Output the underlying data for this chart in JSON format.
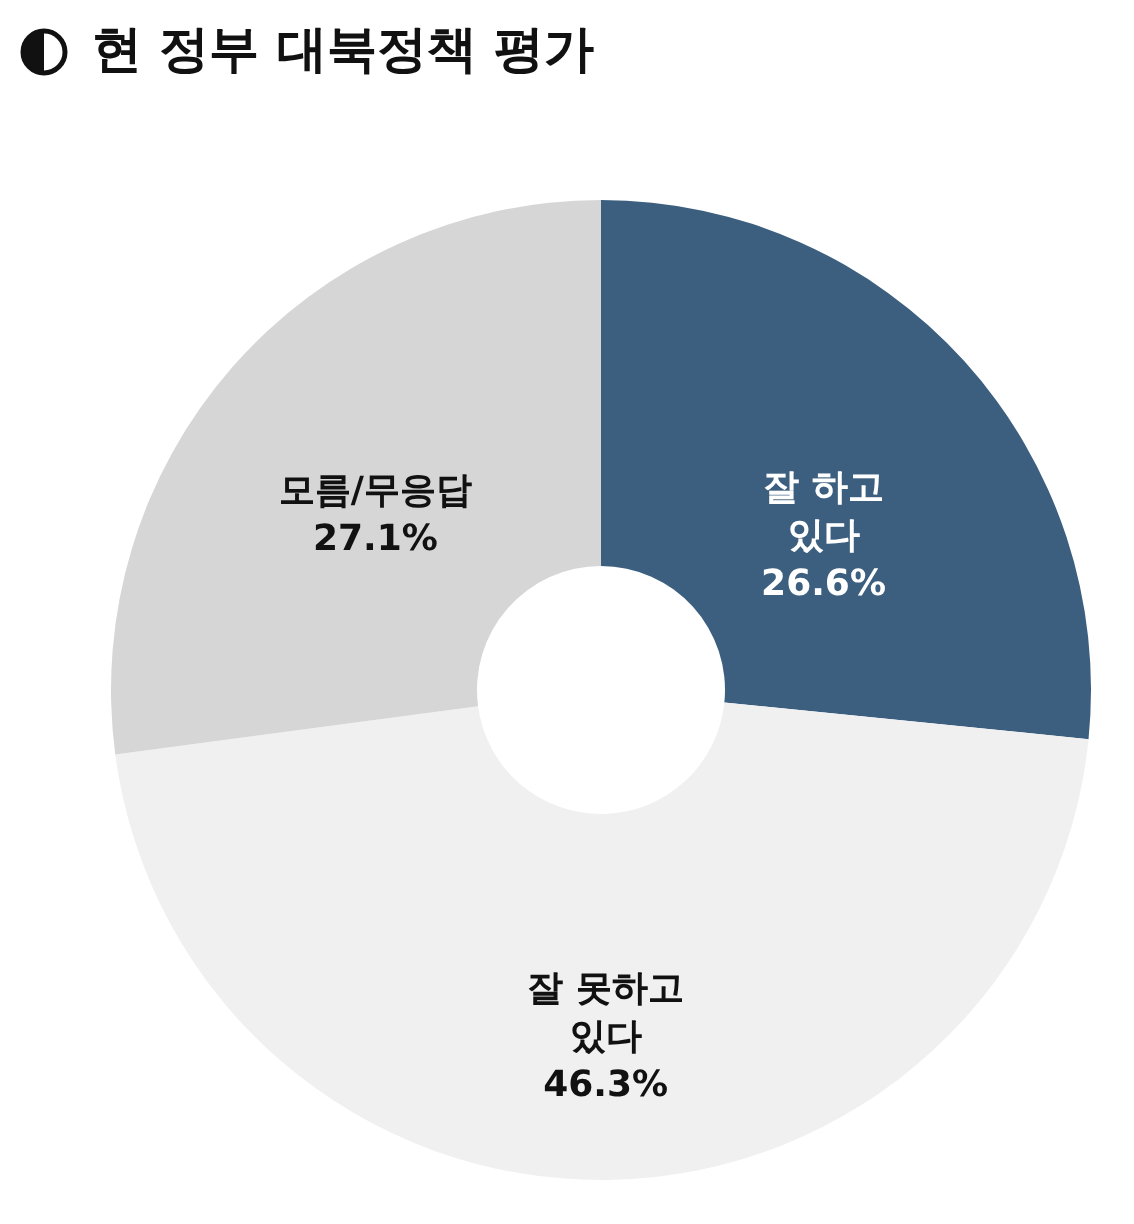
{
  "chart_data": {
    "type": "donut",
    "title": "현 정부 대북정책 평가",
    "categories": [
      "잘 하고\n있다",
      "잘 못하고\n있다",
      "모름/무응답"
    ],
    "values": [
      26.6,
      46.3,
      27.1
    ],
    "colors": [
      "#3d5f7f",
      "#f0f0f0",
      "#d6d6d6"
    ],
    "value_labels": [
      "26.6%",
      "46.3%",
      "27.1%"
    ],
    "legend": false
  }
}
